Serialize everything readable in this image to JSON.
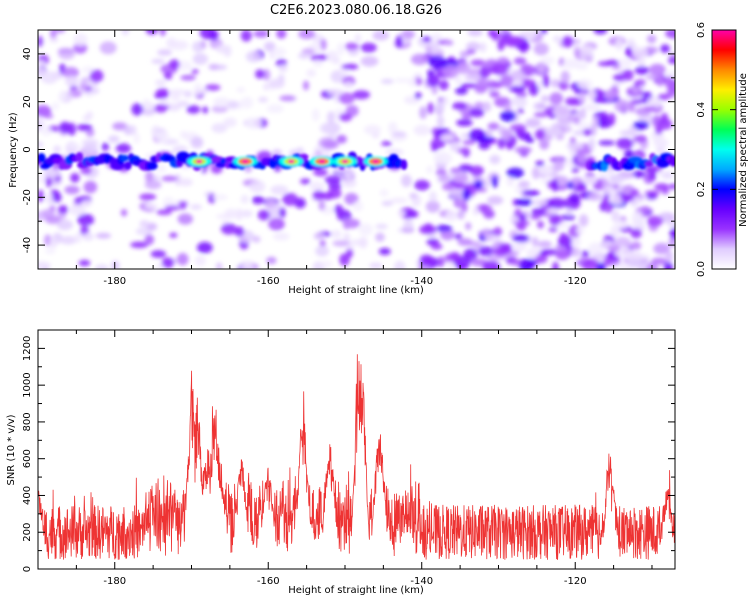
{
  "title": "C2E6.2023.080.06.18.G26",
  "chart_data": [
    {
      "type": "heatmap",
      "xlabel": "Height of straight line (km)",
      "ylabel": "Frequency (Hz)",
      "xlim": [
        -190,
        -107
      ],
      "ylim": [
        -50,
        50
      ],
      "xticks": [
        -180,
        -160,
        -140,
        -120
      ],
      "yticks": [
        -40,
        -20,
        0,
        20,
        40
      ],
      "colorbar": {
        "label": "Normalized spectral amplitude",
        "range": [
          0.0,
          0.6
        ],
        "ticks": [
          "0.0",
          "0.2",
          "0.4",
          "0.6"
        ],
        "colors": [
          "#ffffff",
          "#e0ccff",
          "#9933ff",
          "#6600ff",
          "#0000ff",
          "#00aaff",
          "#00ffee",
          "#00ff55",
          "#99ff00",
          "#ffee00",
          "#ff8800",
          "#ff0000",
          "#ff00aa"
        ]
      },
      "signal_band": {
        "frequency_hz": -5,
        "segments": [
          {
            "x": [
              -190,
              -142
            ],
            "peak": 0.6
          },
          {
            "x": [
              -118,
              -107
            ],
            "peak": 0.25
          }
        ],
        "peak_locations_km": [
          -169,
          -163,
          -157,
          -153,
          -150,
          -146
        ]
      },
      "grid": false
    },
    {
      "type": "line",
      "xlabel": "Height of straight line (km)",
      "ylabel": "SNR (10 * v/v)",
      "xlim": [
        -190,
        -107
      ],
      "ylim": [
        0,
        1300
      ],
      "xticks": [
        -180,
        -160,
        -140,
        -120
      ],
      "yticks": [
        0,
        200,
        400,
        600,
        800,
        1000,
        1200
      ],
      "color": "#ee3333",
      "baseline_range": [
        50,
        450
      ],
      "peaks": [
        {
          "x": -190,
          "y": 450
        },
        {
          "x": -170,
          "y": 1080
        },
        {
          "x": -169.2,
          "y": 950
        },
        {
          "x": -168,
          "y": 700
        },
        {
          "x": -167,
          "y": 1040
        },
        {
          "x": -166.5,
          "y": 720
        },
        {
          "x": -163.5,
          "y": 600
        },
        {
          "x": -160,
          "y": 560
        },
        {
          "x": -155.5,
          "y": 880
        },
        {
          "x": -152,
          "y": 700
        },
        {
          "x": -148.2,
          "y": 1280
        },
        {
          "x": -147.8,
          "y": 1150
        },
        {
          "x": -145.5,
          "y": 800
        },
        {
          "x": -115.5,
          "y": 640
        },
        {
          "x": -108,
          "y": 460
        }
      ],
      "grid": false
    }
  ]
}
